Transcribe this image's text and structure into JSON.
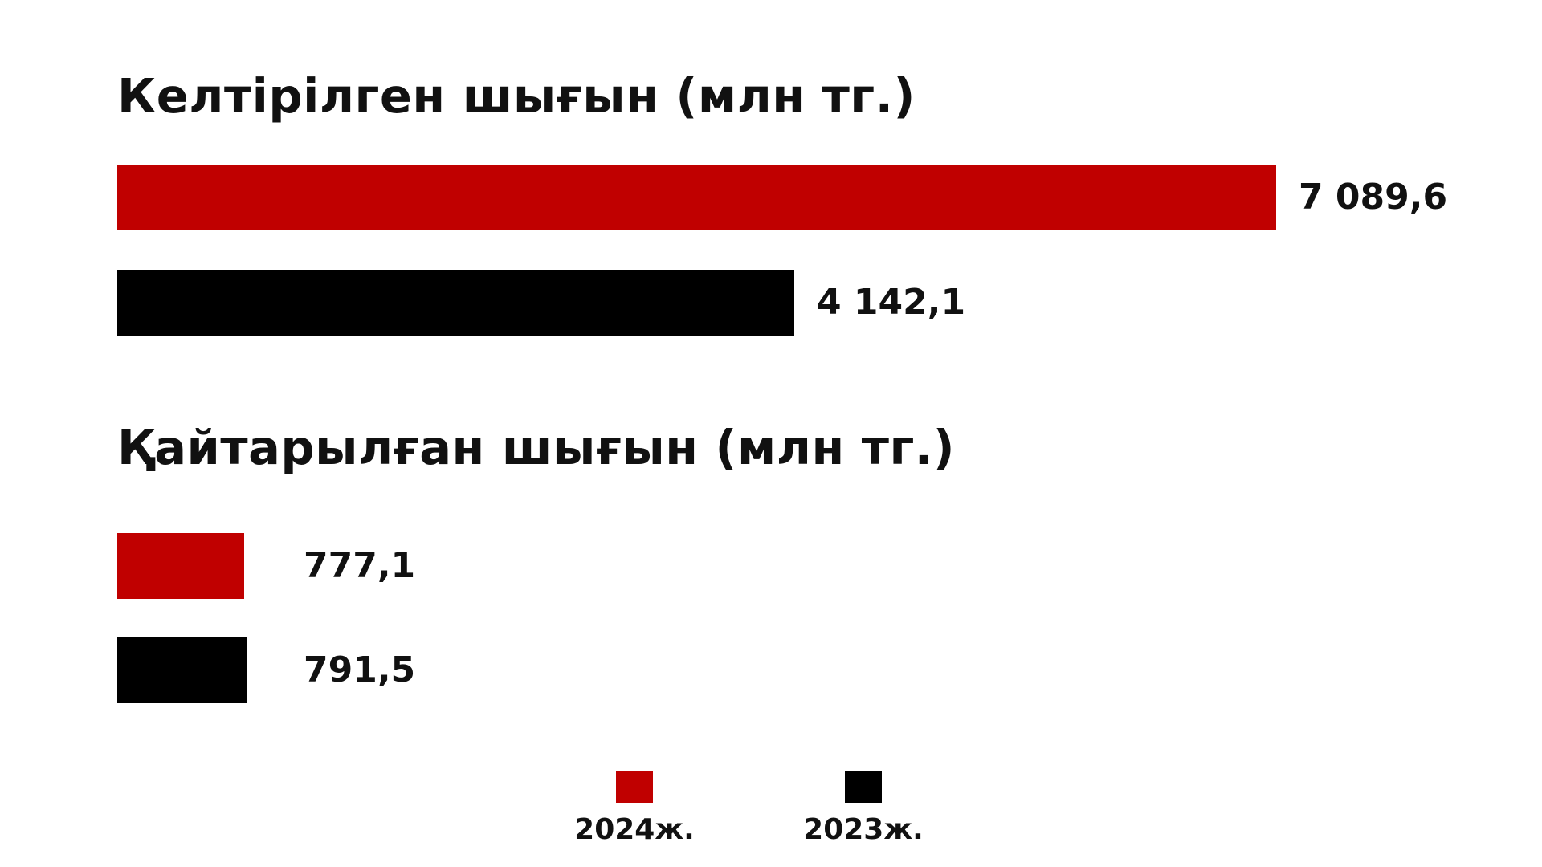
{
  "colors": {
    "2024": "#c00000",
    "2023": "#000000"
  },
  "chart_data": [
    {
      "type": "bar",
      "orientation": "horizontal",
      "title": "Келтірілген шығын (млн тг.)",
      "categories": [
        "2024ж.",
        "2023ж."
      ],
      "values": [
        7089.6,
        4142.1
      ],
      "value_labels": [
        "7 089,6",
        "4 142,1"
      ],
      "colors": [
        "#c00000",
        "#000000"
      ],
      "grid": false,
      "legend": "bottom-center"
    },
    {
      "type": "bar",
      "orientation": "horizontal",
      "title": "Қайтарылған шығын (млн тг.)",
      "categories": [
        "2024ж.",
        "2023ж."
      ],
      "values": [
        777.1,
        791.5
      ],
      "value_labels": [
        "777,1",
        "791,5"
      ],
      "colors": [
        "#c00000",
        "#000000"
      ],
      "grid": false,
      "legend": "bottom-center"
    }
  ],
  "legend": [
    {
      "label": "2024ж.",
      "color": "#c00000"
    },
    {
      "label": "2023ж.",
      "color": "#000000"
    }
  ]
}
